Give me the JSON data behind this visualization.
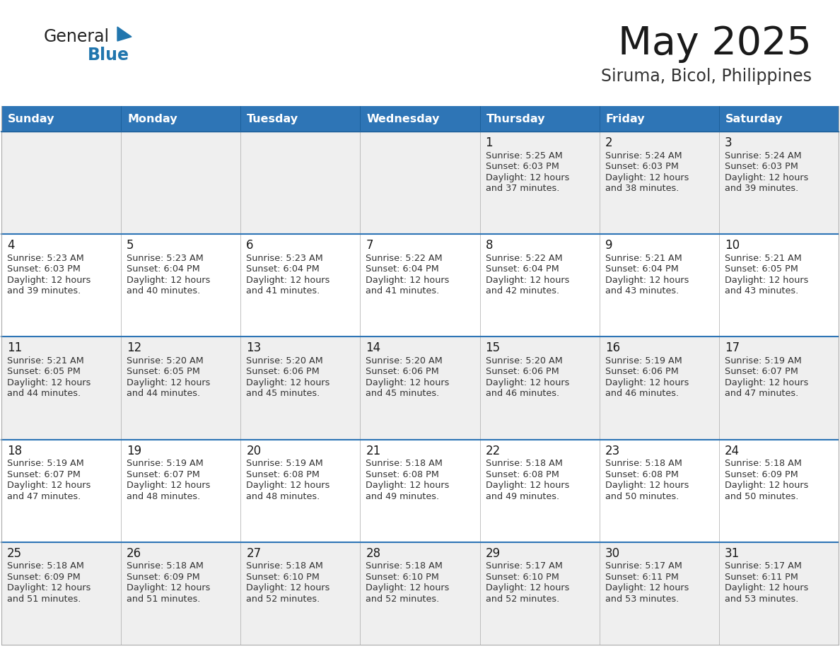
{
  "title": "May 2025",
  "subtitle": "Siruma, Bicol, Philippines",
  "header_bg": "#2E75B6",
  "header_text_color": "#FFFFFF",
  "day_names": [
    "Sunday",
    "Monday",
    "Tuesday",
    "Wednesday",
    "Thursday",
    "Friday",
    "Saturday"
  ],
  "cell_bg_even": "#EFEFEF",
  "cell_bg_odd": "#FFFFFF",
  "cell_border_color": "#AAAAAA",
  "row_top_border_color": "#2E75B6",
  "title_color": "#1A1A1A",
  "subtitle_color": "#333333",
  "day_number_color": "#1A1A1A",
  "info_text_color": "#333333",
  "logo_general_color": "#222222",
  "logo_blue_color": "#2176AE",
  "logo_triangle_color": "#2176AE",
  "calendar_data": [
    [
      null,
      null,
      null,
      null,
      {
        "day": 1,
        "sunrise": "5:25 AM",
        "sunset": "6:03 PM",
        "minutes": "37 minutes."
      },
      {
        "day": 2,
        "sunrise": "5:24 AM",
        "sunset": "6:03 PM",
        "minutes": "38 minutes."
      },
      {
        "day": 3,
        "sunrise": "5:24 AM",
        "sunset": "6:03 PM",
        "minutes": "39 minutes."
      }
    ],
    [
      {
        "day": 4,
        "sunrise": "5:23 AM",
        "sunset": "6:03 PM",
        "minutes": "39 minutes."
      },
      {
        "day": 5,
        "sunrise": "5:23 AM",
        "sunset": "6:04 PM",
        "minutes": "40 minutes."
      },
      {
        "day": 6,
        "sunrise": "5:23 AM",
        "sunset": "6:04 PM",
        "minutes": "41 minutes."
      },
      {
        "day": 7,
        "sunrise": "5:22 AM",
        "sunset": "6:04 PM",
        "minutes": "41 minutes."
      },
      {
        "day": 8,
        "sunrise": "5:22 AM",
        "sunset": "6:04 PM",
        "minutes": "42 minutes."
      },
      {
        "day": 9,
        "sunrise": "5:21 AM",
        "sunset": "6:04 PM",
        "minutes": "43 minutes."
      },
      {
        "day": 10,
        "sunrise": "5:21 AM",
        "sunset": "6:05 PM",
        "minutes": "43 minutes."
      }
    ],
    [
      {
        "day": 11,
        "sunrise": "5:21 AM",
        "sunset": "6:05 PM",
        "minutes": "44 minutes."
      },
      {
        "day": 12,
        "sunrise": "5:20 AM",
        "sunset": "6:05 PM",
        "minutes": "44 minutes."
      },
      {
        "day": 13,
        "sunrise": "5:20 AM",
        "sunset": "6:06 PM",
        "minutes": "45 minutes."
      },
      {
        "day": 14,
        "sunrise": "5:20 AM",
        "sunset": "6:06 PM",
        "minutes": "45 minutes."
      },
      {
        "day": 15,
        "sunrise": "5:20 AM",
        "sunset": "6:06 PM",
        "minutes": "46 minutes."
      },
      {
        "day": 16,
        "sunrise": "5:19 AM",
        "sunset": "6:06 PM",
        "minutes": "46 minutes."
      },
      {
        "day": 17,
        "sunrise": "5:19 AM",
        "sunset": "6:07 PM",
        "minutes": "47 minutes."
      }
    ],
    [
      {
        "day": 18,
        "sunrise": "5:19 AM",
        "sunset": "6:07 PM",
        "minutes": "47 minutes."
      },
      {
        "day": 19,
        "sunrise": "5:19 AM",
        "sunset": "6:07 PM",
        "minutes": "48 minutes."
      },
      {
        "day": 20,
        "sunrise": "5:19 AM",
        "sunset": "6:08 PM",
        "minutes": "48 minutes."
      },
      {
        "day": 21,
        "sunrise": "5:18 AM",
        "sunset": "6:08 PM",
        "minutes": "49 minutes."
      },
      {
        "day": 22,
        "sunrise": "5:18 AM",
        "sunset": "6:08 PM",
        "minutes": "49 minutes."
      },
      {
        "day": 23,
        "sunrise": "5:18 AM",
        "sunset": "6:08 PM",
        "minutes": "50 minutes."
      },
      {
        "day": 24,
        "sunrise": "5:18 AM",
        "sunset": "6:09 PM",
        "minutes": "50 minutes."
      }
    ],
    [
      {
        "day": 25,
        "sunrise": "5:18 AM",
        "sunset": "6:09 PM",
        "minutes": "51 minutes."
      },
      {
        "day": 26,
        "sunrise": "5:18 AM",
        "sunset": "6:09 PM",
        "minutes": "51 minutes."
      },
      {
        "day": 27,
        "sunrise": "5:18 AM",
        "sunset": "6:10 PM",
        "minutes": "52 minutes."
      },
      {
        "day": 28,
        "sunrise": "5:18 AM",
        "sunset": "6:10 PM",
        "minutes": "52 minutes."
      },
      {
        "day": 29,
        "sunrise": "5:17 AM",
        "sunset": "6:10 PM",
        "minutes": "52 minutes."
      },
      {
        "day": 30,
        "sunrise": "5:17 AM",
        "sunset": "6:11 PM",
        "minutes": "53 minutes."
      },
      {
        "day": 31,
        "sunrise": "5:17 AM",
        "sunset": "6:11 PM",
        "minutes": "53 minutes."
      }
    ]
  ]
}
